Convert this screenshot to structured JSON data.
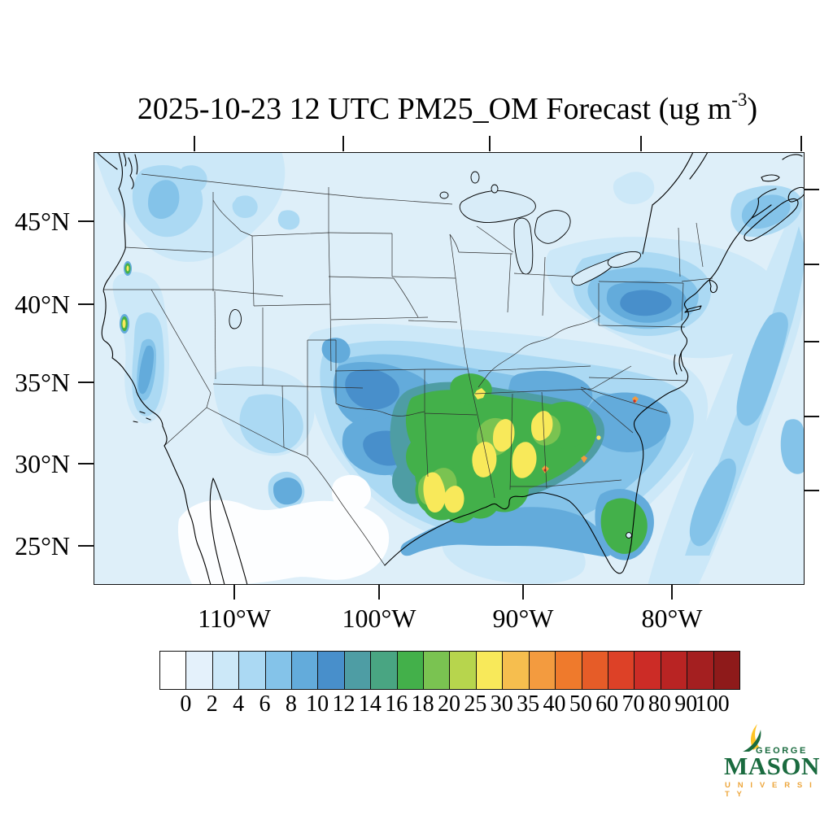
{
  "title": {
    "main": "2025-10-23 12 UTC PM25_OM Forecast (ug m",
    "sup": "-3",
    "suffix": ")"
  },
  "map": {
    "lat_ticks": [
      "45°N",
      "40°N",
      "35°N",
      "30°N",
      "25°N"
    ],
    "lon_ticks": [
      "110°W",
      "100°W",
      "90°W",
      "80°W"
    ],
    "variable": "PM25_OM",
    "units": "ug m-3"
  },
  "colorbar": {
    "labels": [
      "0",
      "2",
      "4",
      "6",
      "8",
      "10",
      "12",
      "14",
      "16",
      "18",
      "20",
      "25",
      "30",
      "35",
      "40",
      "50",
      "60",
      "70",
      "80",
      "90",
      "100"
    ],
    "colors": [
      "#ffffff",
      "#e4f1fb",
      "#cce8f8",
      "#abd9f3",
      "#84c3e9",
      "#63abdb",
      "#488fcb",
      "#4e9da4",
      "#49a582",
      "#43b04a",
      "#7ac351",
      "#b7d54d",
      "#f8e95a",
      "#f6be4e",
      "#f39b3f",
      "#ef7a2c",
      "#e65c28",
      "#dd4127",
      "#cc2c26",
      "#b92423",
      "#a41f20",
      "#8e1a1a"
    ]
  },
  "logo": {
    "line1": "GEORGE",
    "line2": "MASON",
    "line3": "U N I V E R S I T Y",
    "green": "#1a6b3f",
    "gold": "#eda63c"
  }
}
